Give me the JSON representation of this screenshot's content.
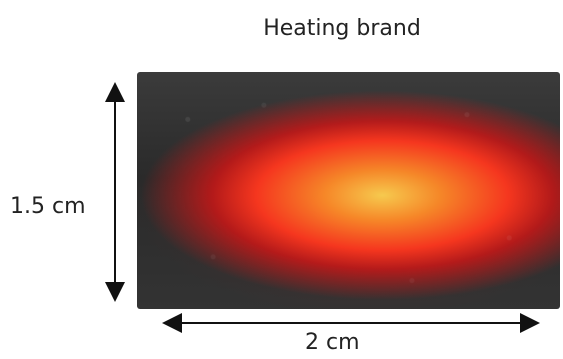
{
  "figure": {
    "title": "Heating brand",
    "height_label": "1.5 cm",
    "width_label": "2 cm",
    "photo_subject": "glowing-heating-element"
  }
}
